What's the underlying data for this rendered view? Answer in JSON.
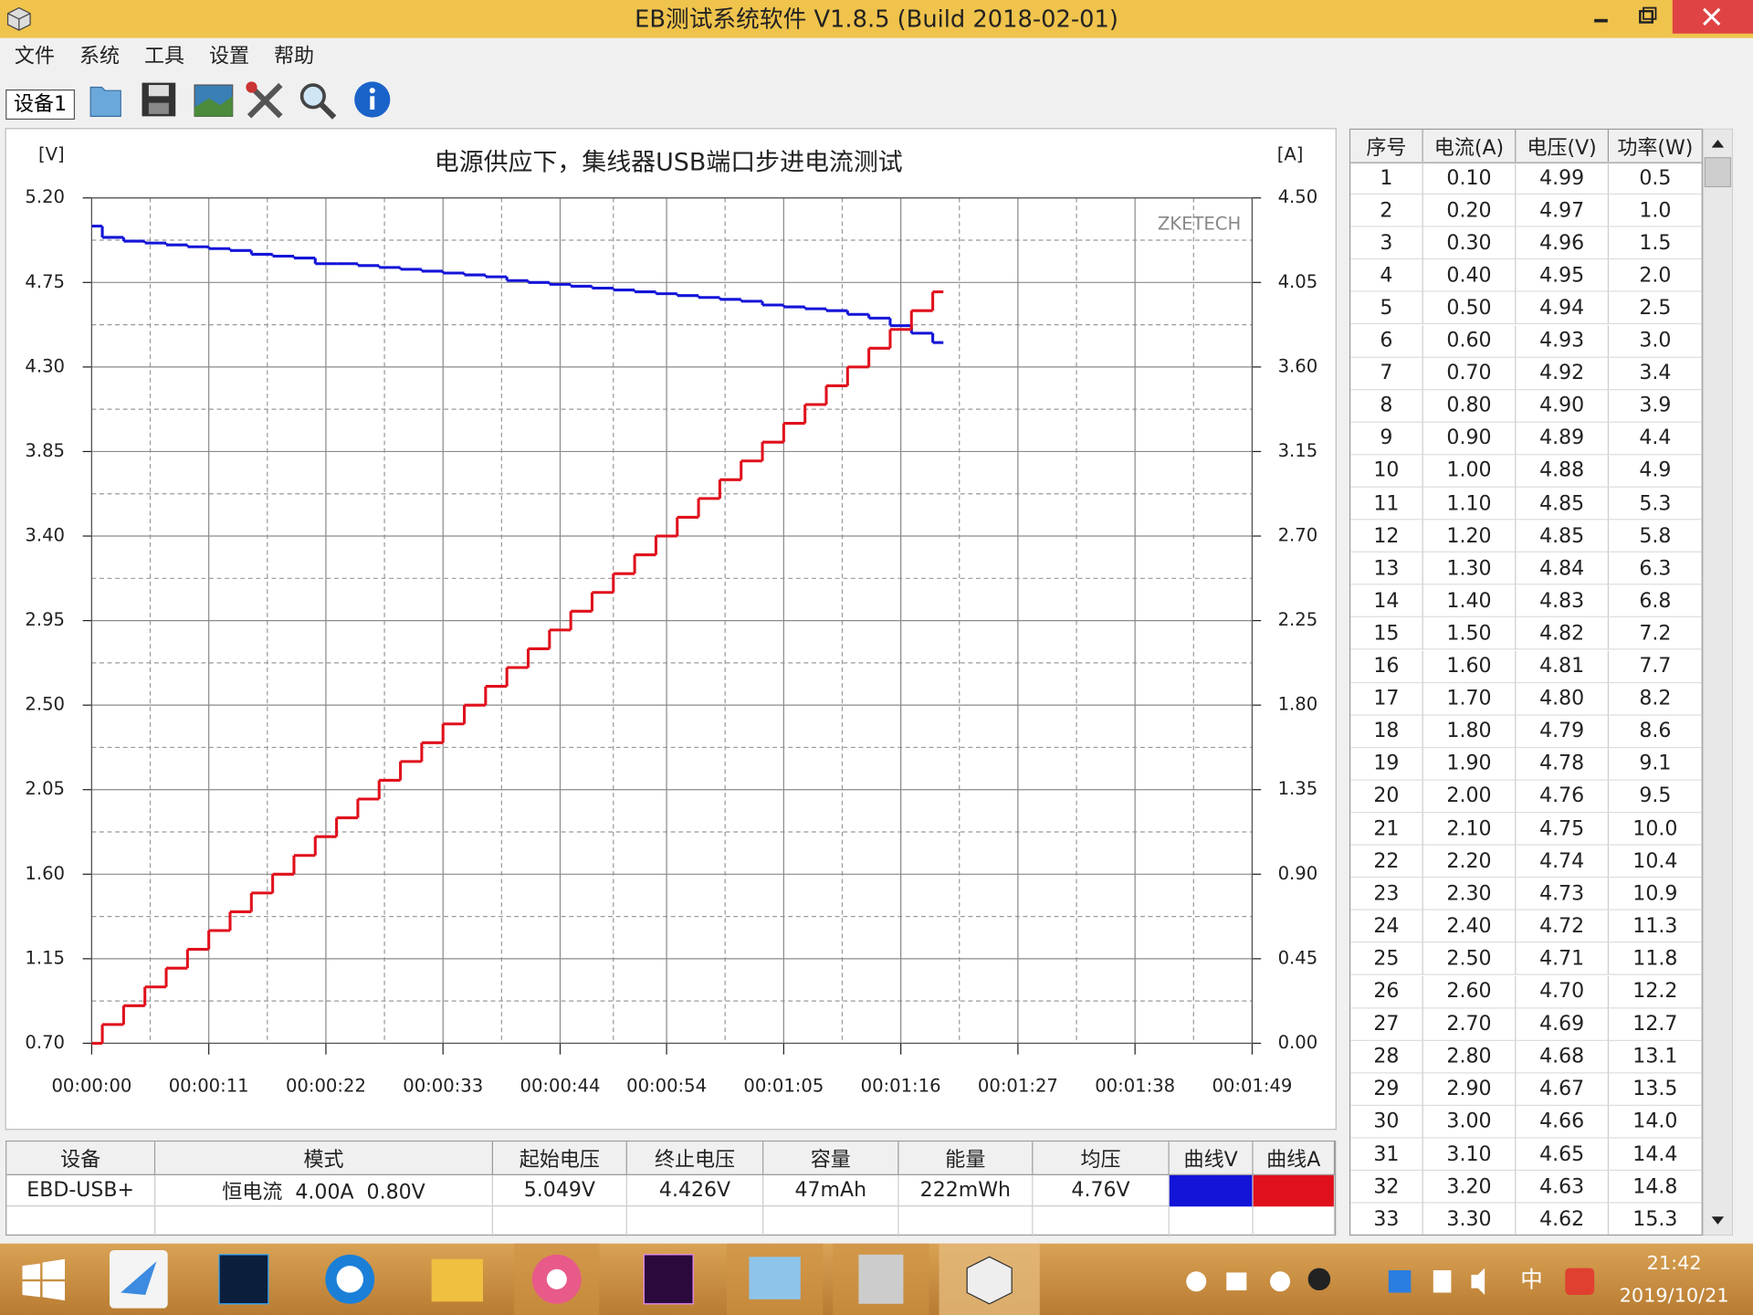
{
  "window": {
    "title": "EB测试系统软件 V1.8.5 (Build 2018-02-01)"
  },
  "menu": [
    "文件",
    "系统",
    "工具",
    "设置",
    "帮助"
  ],
  "toolbar": {
    "device_tab": "设备1"
  },
  "chart_data": {
    "type": "line",
    "line_style": "step",
    "title": "电源供应下，集线器USB端口步进电流测试",
    "y_label": "[V]",
    "y2_label": "[A]",
    "watermark": "ZKETECH",
    "grid": true,
    "x": [
      0,
      1,
      3,
      5,
      7,
      9,
      11,
      13,
      15,
      17,
      19,
      21,
      23,
      25,
      27,
      29,
      31,
      33,
      35,
      37,
      39,
      41,
      43,
      45,
      47,
      49,
      51,
      53,
      55,
      57,
      59,
      61,
      63,
      65,
      67,
      69,
      71,
      73,
      75,
      77,
      79
    ],
    "xlim": [
      0,
      109
    ],
    "xticks": [
      {
        "value": 0,
        "label": "00:00:00"
      },
      {
        "value": 11,
        "label": "00:00:11"
      },
      {
        "value": 22,
        "label": "00:00:22"
      },
      {
        "value": 33,
        "label": "00:00:33"
      },
      {
        "value": 44,
        "label": "00:00:44"
      },
      {
        "value": 54,
        "label": "00:00:54"
      },
      {
        "value": 65,
        "label": "00:01:05"
      },
      {
        "value": 76,
        "label": "00:01:16"
      },
      {
        "value": 87,
        "label": "00:01:27"
      },
      {
        "value": 98,
        "label": "00:01:38"
      },
      {
        "value": 109,
        "label": "00:01:49"
      }
    ],
    "ylim": [
      0.7,
      5.2
    ],
    "yticks": [
      {
        "value": 0.7,
        "label": "0.70"
      },
      {
        "value": 1.15,
        "label": "1.15"
      },
      {
        "value": 1.6,
        "label": "1.60"
      },
      {
        "value": 2.05,
        "label": "2.05"
      },
      {
        "value": 2.5,
        "label": "2.50"
      },
      {
        "value": 2.95,
        "label": "2.95"
      },
      {
        "value": 3.4,
        "label": "3.40"
      },
      {
        "value": 3.85,
        "label": "3.85"
      },
      {
        "value": 4.3,
        "label": "4.30"
      },
      {
        "value": 4.75,
        "label": "4.75"
      },
      {
        "value": 5.2,
        "label": "5.20"
      }
    ],
    "y2lim": [
      0,
      4.5
    ],
    "y2ticks": [
      {
        "value": 0,
        "label": "0.00"
      },
      {
        "value": 0.45,
        "label": "0.45"
      },
      {
        "value": 0.9,
        "label": "0.90"
      },
      {
        "value": 1.35,
        "label": "1.35"
      },
      {
        "value": 1.8,
        "label": "1.80"
      },
      {
        "value": 2.25,
        "label": "2.25"
      },
      {
        "value": 2.7,
        "label": "2.70"
      },
      {
        "value": 3.15,
        "label": "3.15"
      },
      {
        "value": 3.6,
        "label": "3.60"
      },
      {
        "value": 4.05,
        "label": "4.05"
      },
      {
        "value": 4.5,
        "label": "4.50"
      }
    ],
    "series": [
      {
        "color": "#1414d8",
        "axis": "y",
        "values": [
          5.05,
          4.99,
          4.97,
          4.96,
          4.95,
          4.94,
          4.93,
          4.92,
          4.9,
          4.89,
          4.88,
          4.85,
          4.85,
          4.84,
          4.83,
          4.82,
          4.81,
          4.8,
          4.79,
          4.78,
          4.76,
          4.75,
          4.74,
          4.73,
          4.72,
          4.71,
          4.7,
          4.69,
          4.68,
          4.67,
          4.66,
          4.65,
          4.63,
          4.62,
          4.61,
          4.6,
          4.58,
          4.56,
          4.52,
          4.48,
          4.43
        ]
      },
      {
        "color": "#e0101c",
        "axis": "y2",
        "values": [
          0,
          0.1,
          0.2,
          0.3,
          0.4,
          0.5,
          0.6,
          0.7,
          0.8,
          0.9,
          1.0,
          1.1,
          1.2,
          1.3,
          1.4,
          1.5,
          1.6,
          1.7,
          1.8,
          1.9,
          2.0,
          2.1,
          2.2,
          2.3,
          2.4,
          2.5,
          2.6,
          2.7,
          2.8,
          2.9,
          3.0,
          3.1,
          3.2,
          3.3,
          3.4,
          3.5,
          3.6,
          3.7,
          3.8,
          3.9,
          4.0
        ]
      }
    ]
  },
  "summary": {
    "headers": [
      "设备",
      "模式",
      "起始电压",
      "终止电压",
      "容量",
      "能量",
      "均压",
      "曲线V",
      "曲线A"
    ],
    "rows": [
      [
        "EBD-USB+",
        "恒电流  4.00A  0.80V",
        "5.049V",
        "4.426V",
        "47mAh",
        "222mWh",
        "4.76V"
      ]
    ]
  },
  "table": {
    "headers": [
      "序号",
      "电流(A)",
      "电压(V)",
      "功率(W)"
    ],
    "rows": [
      [
        "1",
        "0.10",
        "4.99",
        "0.5"
      ],
      [
        "2",
        "0.20",
        "4.97",
        "1.0"
      ],
      [
        "3",
        "0.30",
        "4.96",
        "1.5"
      ],
      [
        "4",
        "0.40",
        "4.95",
        "2.0"
      ],
      [
        "5",
        "0.50",
        "4.94",
        "2.5"
      ],
      [
        "6",
        "0.60",
        "4.93",
        "3.0"
      ],
      [
        "7",
        "0.70",
        "4.92",
        "3.4"
      ],
      [
        "8",
        "0.80",
        "4.90",
        "3.9"
      ],
      [
        "9",
        "0.90",
        "4.89",
        "4.4"
      ],
      [
        "10",
        "1.00",
        "4.88",
        "4.9"
      ],
      [
        "11",
        "1.10",
        "4.85",
        "5.3"
      ],
      [
        "12",
        "1.20",
        "4.85",
        "5.8"
      ],
      [
        "13",
        "1.30",
        "4.84",
        "6.3"
      ],
      [
        "14",
        "1.40",
        "4.83",
        "6.8"
      ],
      [
        "15",
        "1.50",
        "4.82",
        "7.2"
      ],
      [
        "16",
        "1.60",
        "4.81",
        "7.7"
      ],
      [
        "17",
        "1.70",
        "4.80",
        "8.2"
      ],
      [
        "18",
        "1.80",
        "4.79",
        "8.6"
      ],
      [
        "19",
        "1.90",
        "4.78",
        "9.1"
      ],
      [
        "20",
        "2.00",
        "4.76",
        "9.5"
      ],
      [
        "21",
        "2.10",
        "4.75",
        "10.0"
      ],
      [
        "22",
        "2.20",
        "4.74",
        "10.4"
      ],
      [
        "23",
        "2.30",
        "4.73",
        "10.9"
      ],
      [
        "24",
        "2.40",
        "4.72",
        "11.3"
      ],
      [
        "25",
        "2.50",
        "4.71",
        "11.8"
      ],
      [
        "26",
        "2.60",
        "4.70",
        "12.2"
      ],
      [
        "27",
        "2.70",
        "4.69",
        "12.7"
      ],
      [
        "28",
        "2.80",
        "4.68",
        "13.1"
      ],
      [
        "29",
        "2.90",
        "4.67",
        "13.5"
      ],
      [
        "30",
        "3.00",
        "4.66",
        "14.0"
      ],
      [
        "31",
        "3.10",
        "4.65",
        "14.4"
      ],
      [
        "32",
        "3.20",
        "4.63",
        "14.8"
      ],
      [
        "33",
        "3.30",
        "4.62",
        "15.3"
      ]
    ]
  },
  "taskbar": {
    "ime": "中",
    "time": "21:42",
    "date": "2019/10/21"
  }
}
